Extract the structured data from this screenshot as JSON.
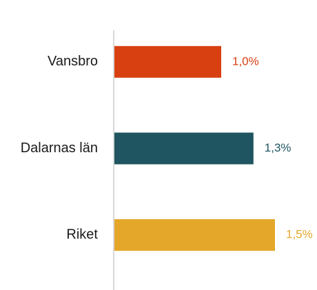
{
  "chart_data": {
    "type": "hbar",
    "categories": [
      "Vansbro",
      "Dalarnas län",
      "Riket"
    ],
    "values": [
      1.0,
      1.3,
      1.5
    ],
    "value_labels": [
      "1,0%",
      "1,3%",
      "1,5%"
    ],
    "colors": [
      "#d84012",
      "#1f5560",
      "#e4a72a"
    ]
  }
}
